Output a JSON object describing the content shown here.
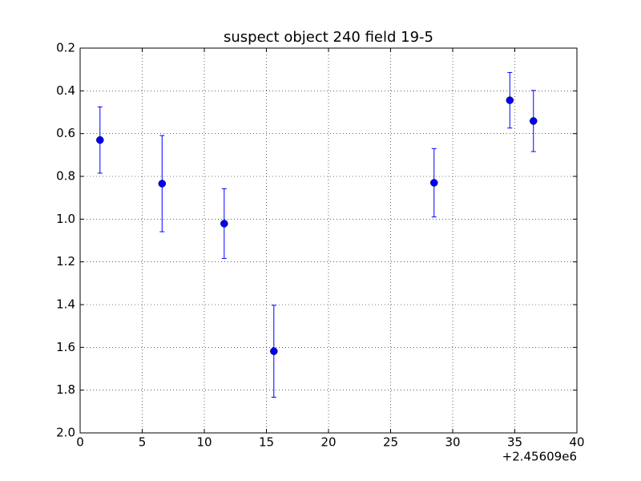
{
  "chart_data": {
    "type": "errorbar",
    "title": "suspect object 240 field 19-5",
    "x_offset_label": "+2.45609e6",
    "x": [
      1.6,
      6.6,
      11.6,
      15.6,
      28.5,
      34.6,
      36.5
    ],
    "values": [
      0.63,
      0.834,
      1.021,
      1.618,
      0.83,
      0.444,
      0.541
    ],
    "errors": [
      0.155,
      0.225,
      0.163,
      0.215,
      0.16,
      0.13,
      0.143
    ],
    "color": "#0000ff",
    "xlim": [
      0,
      40
    ],
    "xticks": [
      0,
      5,
      10,
      15,
      20,
      25,
      30,
      35,
      40
    ],
    "ylim": [
      0.2,
      2.0
    ],
    "y_inverted": true,
    "yticks": [
      0.2,
      0.4,
      0.6,
      0.8,
      {
        "value": 1,
        "label": "1.0"
      },
      1.2,
      1.4,
      1.6,
      1.8,
      {
        "value": 2,
        "label": "2.0"
      }
    ],
    "grid": true
  }
}
